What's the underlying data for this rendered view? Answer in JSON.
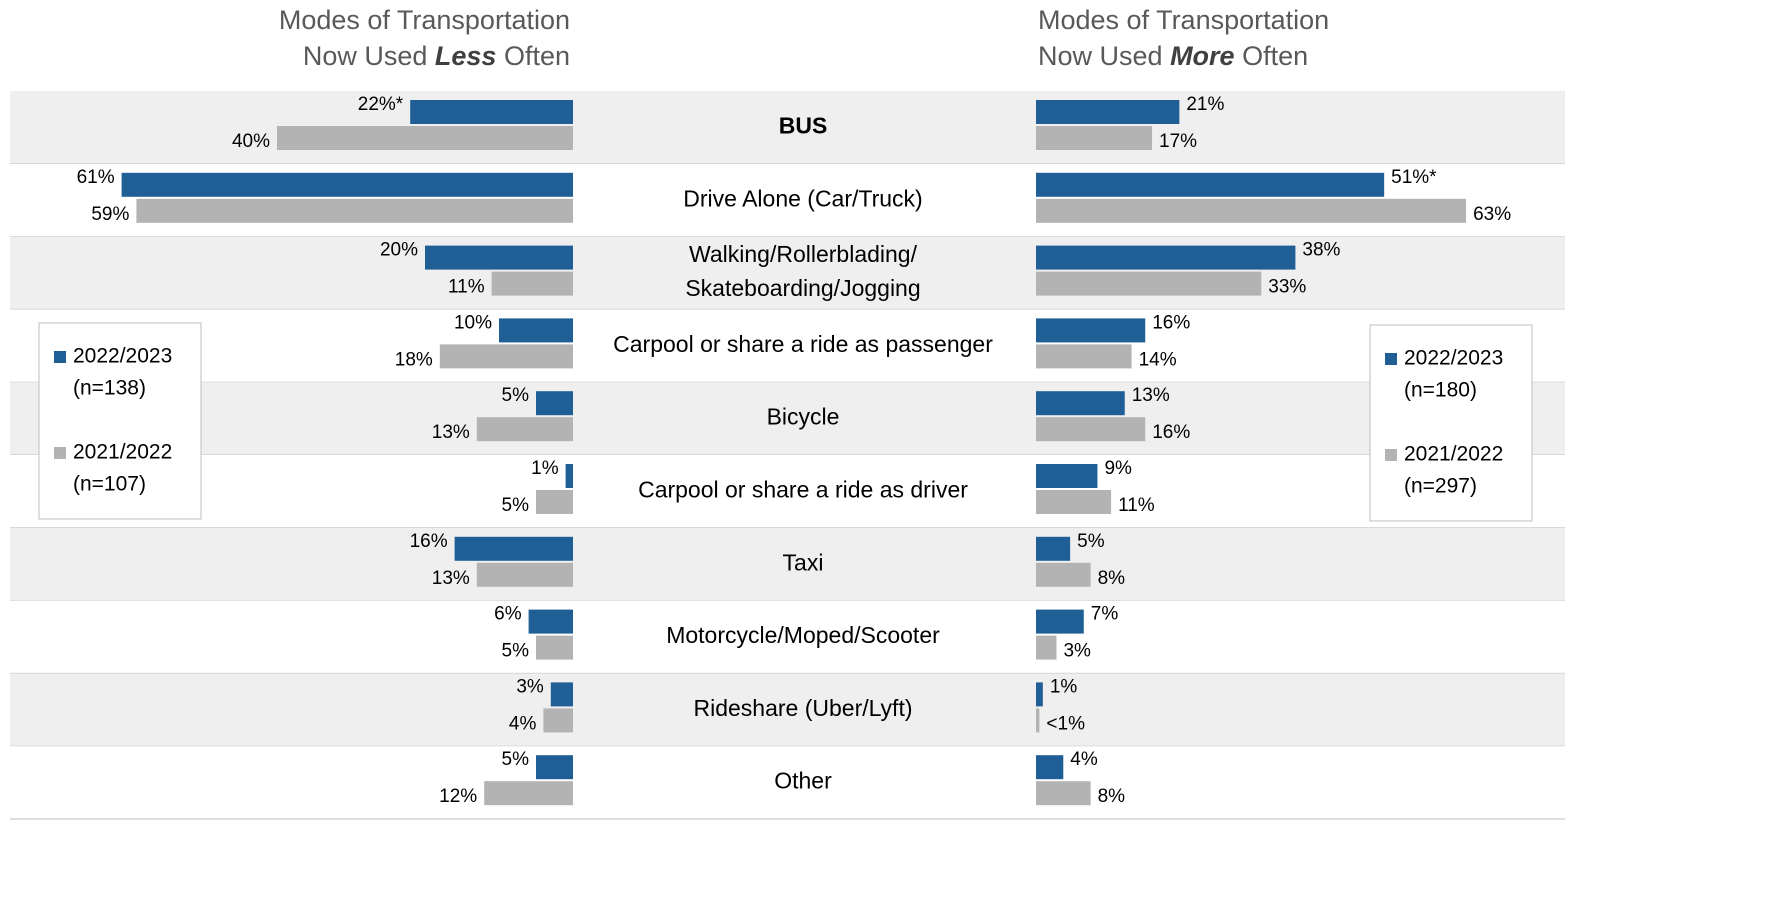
{
  "chart_data": [
    {
      "type": "bar",
      "orientation": "horizontal",
      "direction": "left",
      "title": {
        "line1": "Modes of Transportation",
        "prefix": "Now Used",
        "emphasis": "Less",
        "suffix": "Often"
      },
      "categories": [
        "BUS",
        "Drive Alone (Car/Truck)",
        [
          "Walking/Rollerblading/",
          "Skateboarding/Jogging"
        ],
        "Carpool or share a ride as passenger",
        "Bicycle",
        "Carpool or share a ride as driver",
        "Taxi",
        "Motorcycle/Moped/Scooter",
        "Rideshare (Uber/Lyft)",
        "Other"
      ],
      "highlight_category": "BUS",
      "highlight_color": "#e00000",
      "xlim": [
        0,
        75
      ],
      "series": [
        {
          "name": "2022/2023",
          "n": "(n=138)",
          "color": "#1f5f96",
          "values": [
            22,
            61,
            20,
            10,
            5,
            1,
            16,
            6,
            3,
            5
          ],
          "value_labels": [
            "22%*",
            "61%",
            "20%",
            "10%",
            "5%",
            "1%",
            "16%",
            "6%",
            "3%",
            "5%"
          ]
        },
        {
          "name": "2021/2022",
          "n": "(n=107)",
          "color": "#b3b3b3",
          "values": [
            40,
            59,
            11,
            18,
            13,
            5,
            13,
            5,
            4,
            12
          ],
          "value_labels": [
            "40%",
            "59%",
            "11%",
            "18%",
            "13%",
            "5%",
            "13%",
            "5%",
            "4%",
            "12%"
          ]
        }
      ]
    },
    {
      "type": "bar",
      "orientation": "horizontal",
      "direction": "right",
      "title": {
        "line1": "Modes of Transportation",
        "prefix": "Now Used",
        "emphasis": "More",
        "suffix": "Often"
      },
      "xlim": [
        0,
        75
      ],
      "series": [
        {
          "name": "2022/2023",
          "n": "(n=180)",
          "color": "#1f5f96",
          "values": [
            21,
            51,
            38,
            16,
            13,
            9,
            5,
            7,
            1,
            4
          ],
          "value_labels": [
            "21%",
            "51%*",
            "38%",
            "16%",
            "13%",
            "9%",
            "5%",
            "7%",
            "1%",
            "4%"
          ]
        },
        {
          "name": "2021/2022",
          "n": "(n=297)",
          "color": "#b3b3b3",
          "values": [
            17,
            63,
            33,
            14,
            16,
            11,
            8,
            3,
            0.5,
            8
          ],
          "value_labels": [
            "17%",
            "63%",
            "33%",
            "14%",
            "16%",
            "11%",
            "8%",
            "3%",
            "<1%",
            "8%"
          ]
        }
      ]
    }
  ]
}
